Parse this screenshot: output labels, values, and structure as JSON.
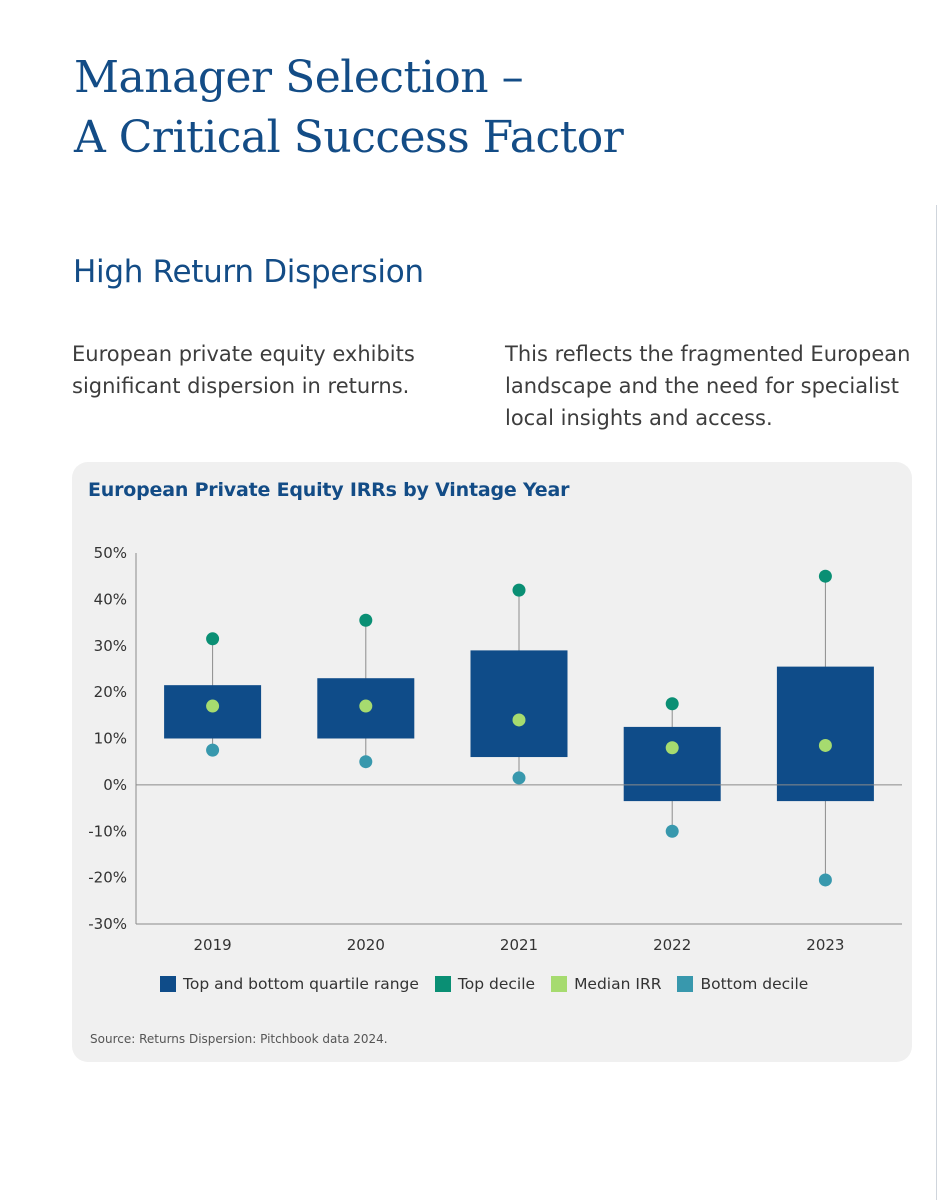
{
  "heading": {
    "line1": "Manager Selection –",
    "line2": "A Critical Success Factor"
  },
  "section_title": "High Return Dispersion",
  "body": {
    "left": "European private equity exhibits significant dispersion in returns.",
    "right": "This reflects the fragmented European landscape and the need for specialist local insights and access."
  },
  "colors": {
    "quartile": "#0f4c89",
    "top_decile": "#0a8f74",
    "median": "#a6db6f",
    "bottom_decile": "#3898ad"
  },
  "chart_data": {
    "type": "box",
    "title": "European Private Equity IRRs by Vintage Year",
    "categories": [
      "2019",
      "2020",
      "2021",
      "2022",
      "2023"
    ],
    "series": [
      {
        "name": "Top and bottom quartile range",
        "lower": [
          10,
          10,
          6,
          -3.5,
          -3.5
        ],
        "upper": [
          21.5,
          23,
          29,
          12.5,
          25.5
        ]
      },
      {
        "name": "Top decile",
        "values": [
          31.5,
          35.5,
          42,
          17.5,
          45
        ]
      },
      {
        "name": "Median IRR",
        "values": [
          17,
          17,
          14,
          8,
          8.5
        ]
      },
      {
        "name": "Bottom decile",
        "values": [
          7.5,
          5,
          1.5,
          -10,
          -20.5
        ]
      }
    ],
    "y_ticks": [
      "50%",
      "40%",
      "30%",
      "20%",
      "10%",
      "0%",
      "-10%",
      "-20%",
      "-30%"
    ],
    "ylim": [
      -30,
      50
    ],
    "xlabel": "",
    "ylabel": "",
    "legend": [
      "Top and bottom quartile range",
      "Top decile",
      "Median IRR",
      "Bottom decile"
    ],
    "source": "Source: Returns Dispersion: Pitchbook data 2024."
  }
}
